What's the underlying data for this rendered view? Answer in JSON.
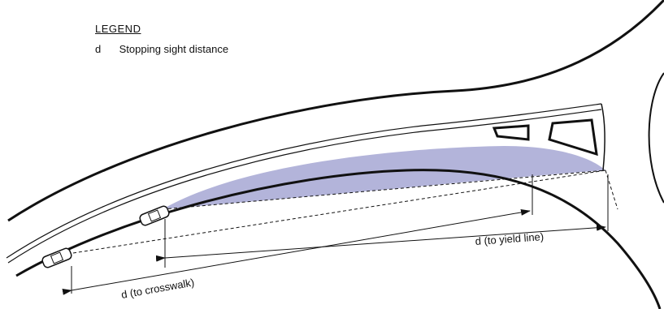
{
  "legend": {
    "title": "LEGEND",
    "items": [
      {
        "key": "d",
        "text": "Stopping sight distance"
      }
    ]
  },
  "labels": {
    "yield": "d (to yield line)",
    "crosswalk": "d (to crosswalk)"
  },
  "colors": {
    "sight_area": "#b3b4da",
    "line": "#111111"
  }
}
